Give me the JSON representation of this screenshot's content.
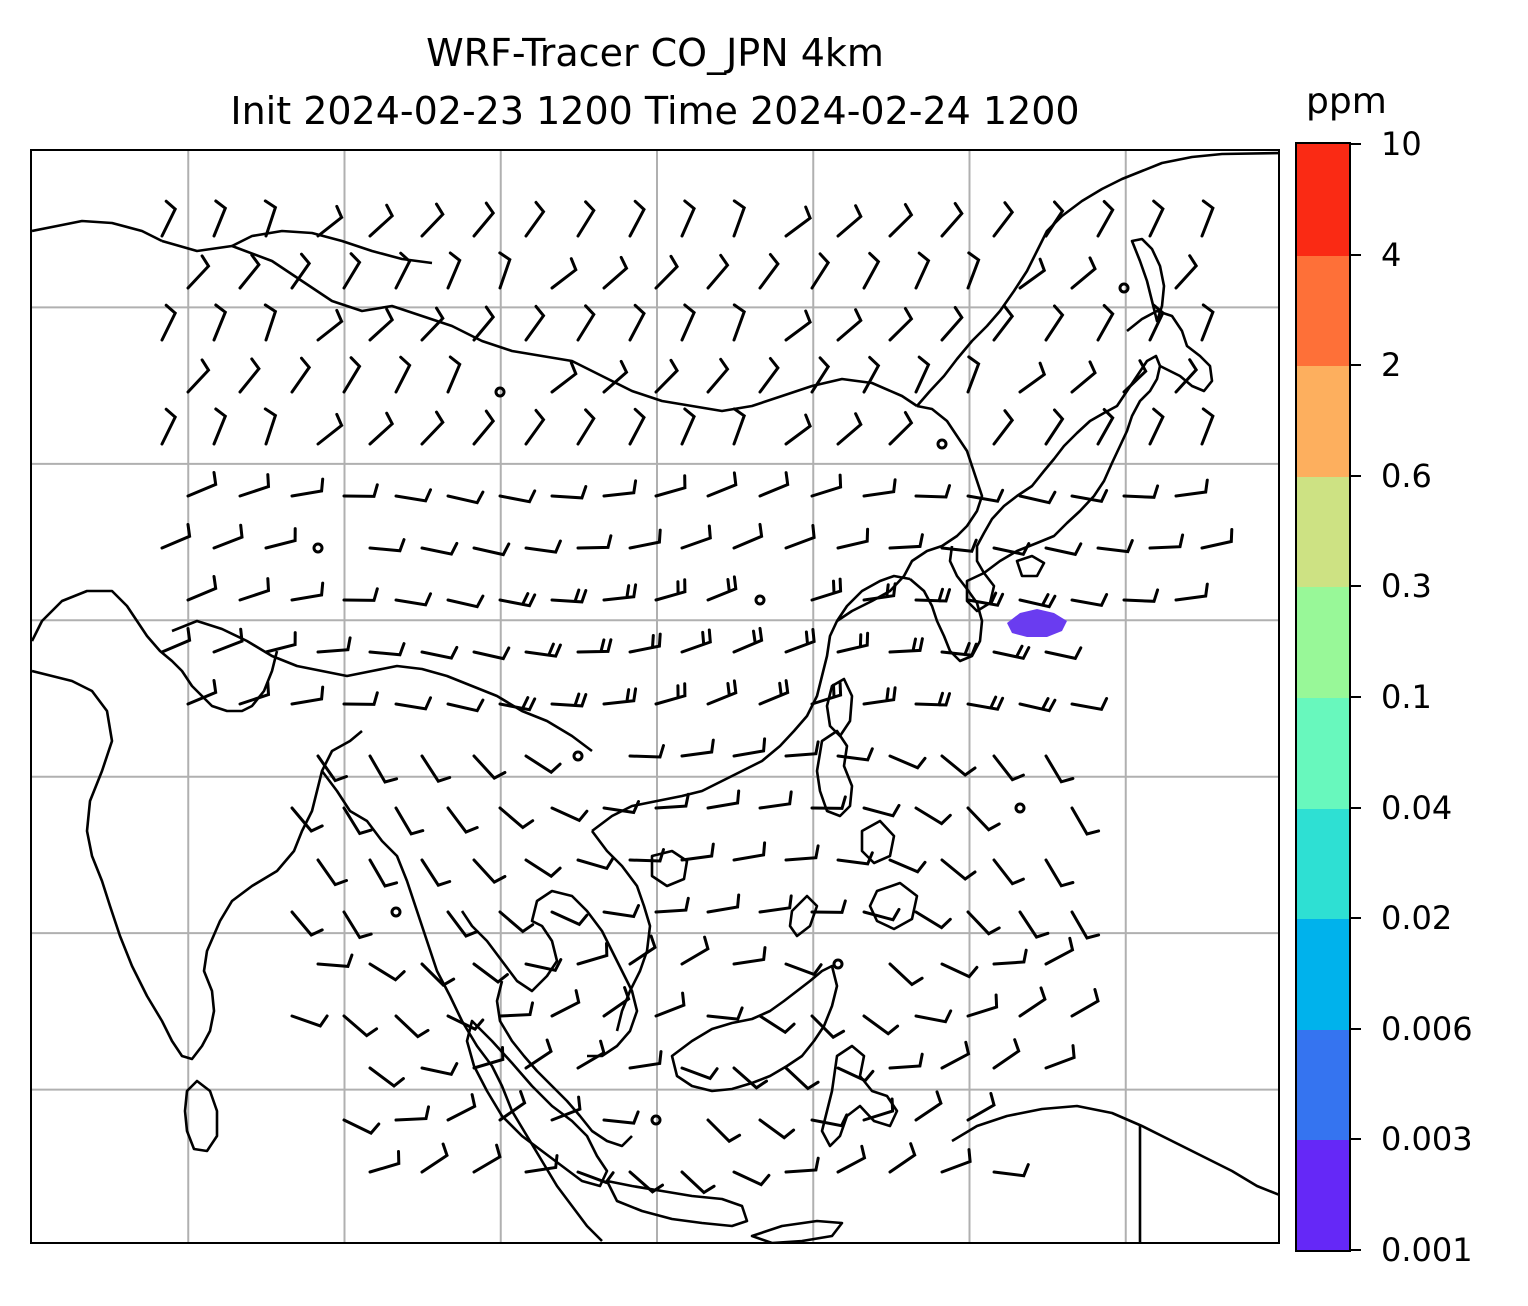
{
  "title": {
    "line1": "WRF-Tracer CO_JPN 4km",
    "line2": "Init 2024-02-23 1200 Time 2024-02-24 1200"
  },
  "colorbar": {
    "unit": "ppm",
    "labels": [
      "0.001",
      "0.003",
      "0.006",
      "0.02",
      "0.04",
      "0.1",
      "0.3",
      "0.6",
      "2",
      "4",
      "10"
    ],
    "colors": [
      "#6528f7",
      "#3574f0",
      "#00b2ec",
      "#2ee0d3",
      "#68f8bd",
      "#98f898",
      "#cde283",
      "#fdaf5e",
      "#fe7038",
      "#fa2a14"
    ]
  },
  "colors": {
    "tracer_plume": "#6a3cf0",
    "grid": "#b0b0b0",
    "coast": "#000000",
    "barb": "#000000"
  },
  "map": {
    "grid_rows": 7,
    "grid_cols": 8,
    "features": [
      "coastlines",
      "wind-barbs",
      "gridlines",
      "tracer-plume"
    ]
  }
}
